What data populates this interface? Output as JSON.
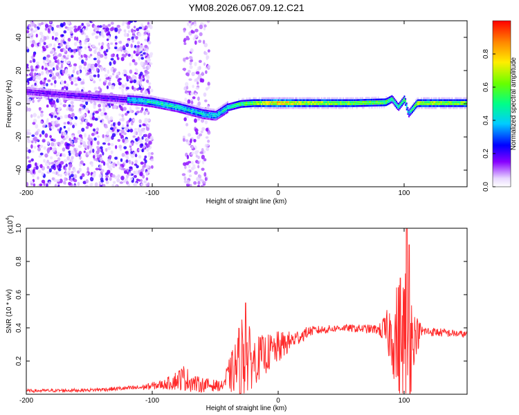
{
  "page_title": "YM08.2026.067.09.12.C21",
  "chart_data": [
    {
      "type": "heatmap",
      "name": "spectrogram",
      "title": "YM08.2026.067.09.12.C21",
      "xlabel": "Height of straight line (km)",
      "ylabel": "Frequency (Hz)",
      "xlim": [
        -200,
        150
      ],
      "ylim": [
        -50,
        50
      ],
      "xticks": [
        -200,
        -100,
        0,
        100
      ],
      "yticks": [
        -40,
        -20,
        0,
        20,
        40
      ],
      "colorbar": {
        "label": "Normalized spectral amplitude",
        "ticks": [
          0,
          0.2,
          0.4,
          0.6,
          0.8
        ],
        "ticklabels": [
          "0.0",
          "0.2",
          "0.4",
          "0.6",
          "0.8"
        ],
        "range": [
          0,
          1
        ]
      },
      "ridge": {
        "description_points": [
          {
            "x": -160,
            "y": 5,
            "amp": 0.4
          },
          {
            "x": -110,
            "y": 2,
            "amp": 0.45
          },
          {
            "x": -100,
            "y": 1,
            "amp": 0.5
          },
          {
            "x": -80,
            "y": -2,
            "amp": 0.5
          },
          {
            "x": -60,
            "y": -6,
            "amp": 0.45
          },
          {
            "x": -50,
            "y": -7,
            "amp": 0.45
          },
          {
            "x": -40,
            "y": -2,
            "amp": 0.5
          },
          {
            "x": -30,
            "y": 0,
            "amp": 0.6
          },
          {
            "x": -20,
            "y": 0.5,
            "amp": 0.7
          },
          {
            "x": 0,
            "y": 0.5,
            "amp": 0.9
          },
          {
            "x": 20,
            "y": 0.5,
            "amp": 0.75
          },
          {
            "x": 60,
            "y": 0.5,
            "amp": 0.7
          },
          {
            "x": 85,
            "y": 1,
            "amp": 0.65
          },
          {
            "x": 90,
            "y": 3,
            "amp": 0.55
          },
          {
            "x": 95,
            "y": -2,
            "amp": 0.55
          },
          {
            "x": 100,
            "y": 3,
            "amp": 0.6
          },
          {
            "x": 103,
            "y": -6,
            "amp": 0.45
          },
          {
            "x": 110,
            "y": 0.5,
            "amp": 0.75
          },
          {
            "x": 150,
            "y": 0.5,
            "amp": 0.7
          }
        ]
      }
    },
    {
      "type": "line",
      "name": "snr",
      "xlabel": "Height of straight line (km)",
      "ylabel": "SNR (10 * v/v)",
      "scale_label": "(x10",
      "scale_exponent": "4",
      "xlim": [
        -200,
        150
      ],
      "ylim": [
        0,
        1.0
      ],
      "xticks": [
        -200,
        -100,
        0,
        100
      ],
      "yticks": [
        0.2,
        0.4,
        0.6,
        0.8,
        1.0
      ],
      "yticklabels": [
        "0.2",
        "0.4",
        "0.6",
        "0.8",
        "1.0"
      ],
      "color": "#ff2a2a",
      "envelope": [
        {
          "x": -200,
          "base": 0.02,
          "amp": 0.01
        },
        {
          "x": -150,
          "base": 0.025,
          "amp": 0.01
        },
        {
          "x": -110,
          "base": 0.04,
          "amp": 0.015
        },
        {
          "x": -90,
          "base": 0.06,
          "amp": 0.03
        },
        {
          "x": -75,
          "base": 0.1,
          "amp": 0.08
        },
        {
          "x": -65,
          "base": 0.06,
          "amp": 0.05
        },
        {
          "x": -45,
          "base": 0.05,
          "amp": 0.03
        },
        {
          "x": -35,
          "base": 0.15,
          "amp": 0.15
        },
        {
          "x": -28,
          "base": 0.22,
          "amp": 0.3
        },
        {
          "x": -20,
          "base": 0.2,
          "amp": 0.15
        },
        {
          "x": -10,
          "base": 0.24,
          "amp": 0.12
        },
        {
          "x": 0,
          "base": 0.28,
          "amp": 0.1
        },
        {
          "x": 10,
          "base": 0.32,
          "amp": 0.06
        },
        {
          "x": 25,
          "base": 0.38,
          "amp": 0.03
        },
        {
          "x": 50,
          "base": 0.4,
          "amp": 0.02
        },
        {
          "x": 80,
          "base": 0.39,
          "amp": 0.03
        },
        {
          "x": 90,
          "base": 0.36,
          "amp": 0.2
        },
        {
          "x": 97,
          "base": 0.3,
          "amp": 0.45
        },
        {
          "x": 103,
          "base": 0.3,
          "amp": 0.55
        },
        {
          "x": 108,
          "base": 0.35,
          "amp": 0.15
        },
        {
          "x": 115,
          "base": 0.38,
          "amp": 0.03
        },
        {
          "x": 150,
          "base": 0.36,
          "amp": 0.02
        }
      ],
      "peaks": [
        {
          "x": -26,
          "y": 0.55
        },
        {
          "x": 97,
          "y": 0.7
        },
        {
          "x": 102,
          "y": 1.0
        },
        {
          "x": 104,
          "y": 0.9
        }
      ]
    }
  ]
}
